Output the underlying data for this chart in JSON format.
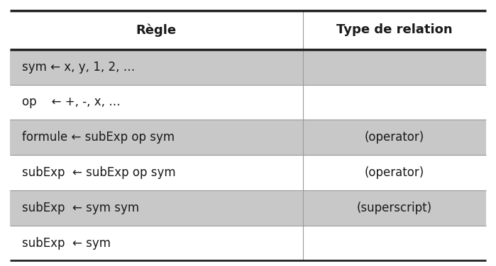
{
  "title_col1": "Règle",
  "title_col2": "Type de relation",
  "rows": [
    {
      "rule": "sym ← x, y, 1, 2, …",
      "type": "",
      "shaded": true
    },
    {
      "rule": "op    ← +, -, x, …",
      "type": "",
      "shaded": false
    },
    {
      "rule": "formule ← subExp op sym",
      "type": "(operator)",
      "shaded": true
    },
    {
      "rule": "subExp  ← subExp op sym",
      "type": "(operator)",
      "shaded": false
    },
    {
      "rule": "subExp  ← sym sym",
      "type": "(superscript)",
      "shaded": true
    },
    {
      "rule": "subExp  ← sym",
      "type": "",
      "shaded": false
    }
  ],
  "bg_color": "#ffffff",
  "shaded_color": "#c8c8c8",
  "header_bg": "#ffffff",
  "text_color": "#1a1a1a",
  "header_fontsize": 13,
  "cell_fontsize": 12,
  "col_split": 0.615,
  "fig_width": 6.99,
  "fig_height": 3.76
}
